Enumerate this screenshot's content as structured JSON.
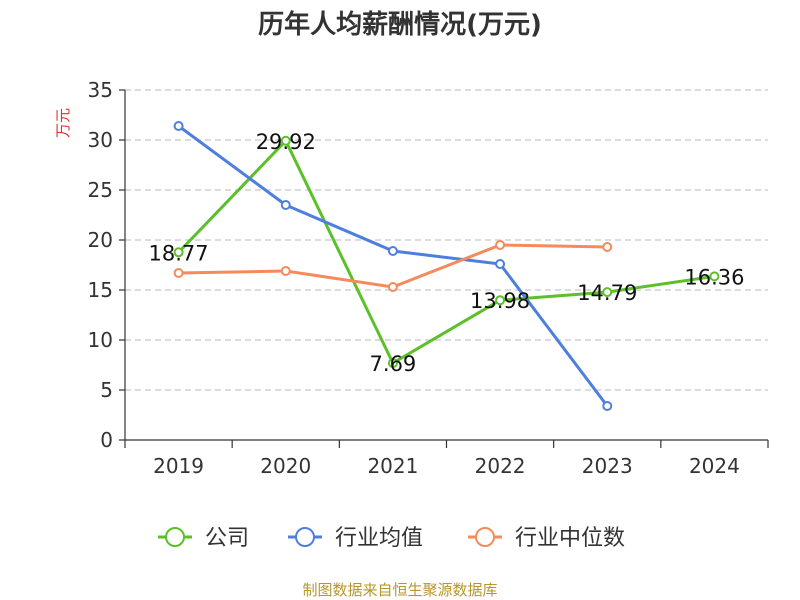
{
  "chart_data": {
    "type": "line",
    "title": "历年人均薪酬情况(万元)",
    "ylabel": "万元",
    "xlabel": "",
    "categories": [
      "2019",
      "2020",
      "2021",
      "2022",
      "2023",
      "2024"
    ],
    "ylim": [
      0,
      35
    ],
    "yticks": [
      0,
      5,
      10,
      15,
      20,
      25,
      30,
      35
    ],
    "grid": "horizontal dashed",
    "legend_position": "bottom",
    "series": [
      {
        "name": "公司",
        "color": "#5cc02a",
        "values": [
          18.77,
          29.92,
          7.69,
          13.98,
          14.79,
          16.36
        ],
        "labels": [
          "18.77",
          "29.92",
          "7.69",
          "13.98",
          "14.79",
          "16.36"
        ]
      },
      {
        "name": "行业均值",
        "color": "#4f7fde",
        "values": [
          31.4,
          23.5,
          18.9,
          17.6,
          3.4,
          null
        ]
      },
      {
        "name": "行业中位数",
        "color": "#f58a5b",
        "values": [
          16.7,
          16.9,
          15.3,
          19.5,
          19.3,
          null
        ]
      }
    ]
  },
  "source": "制图数据来自恒生聚源数据库"
}
